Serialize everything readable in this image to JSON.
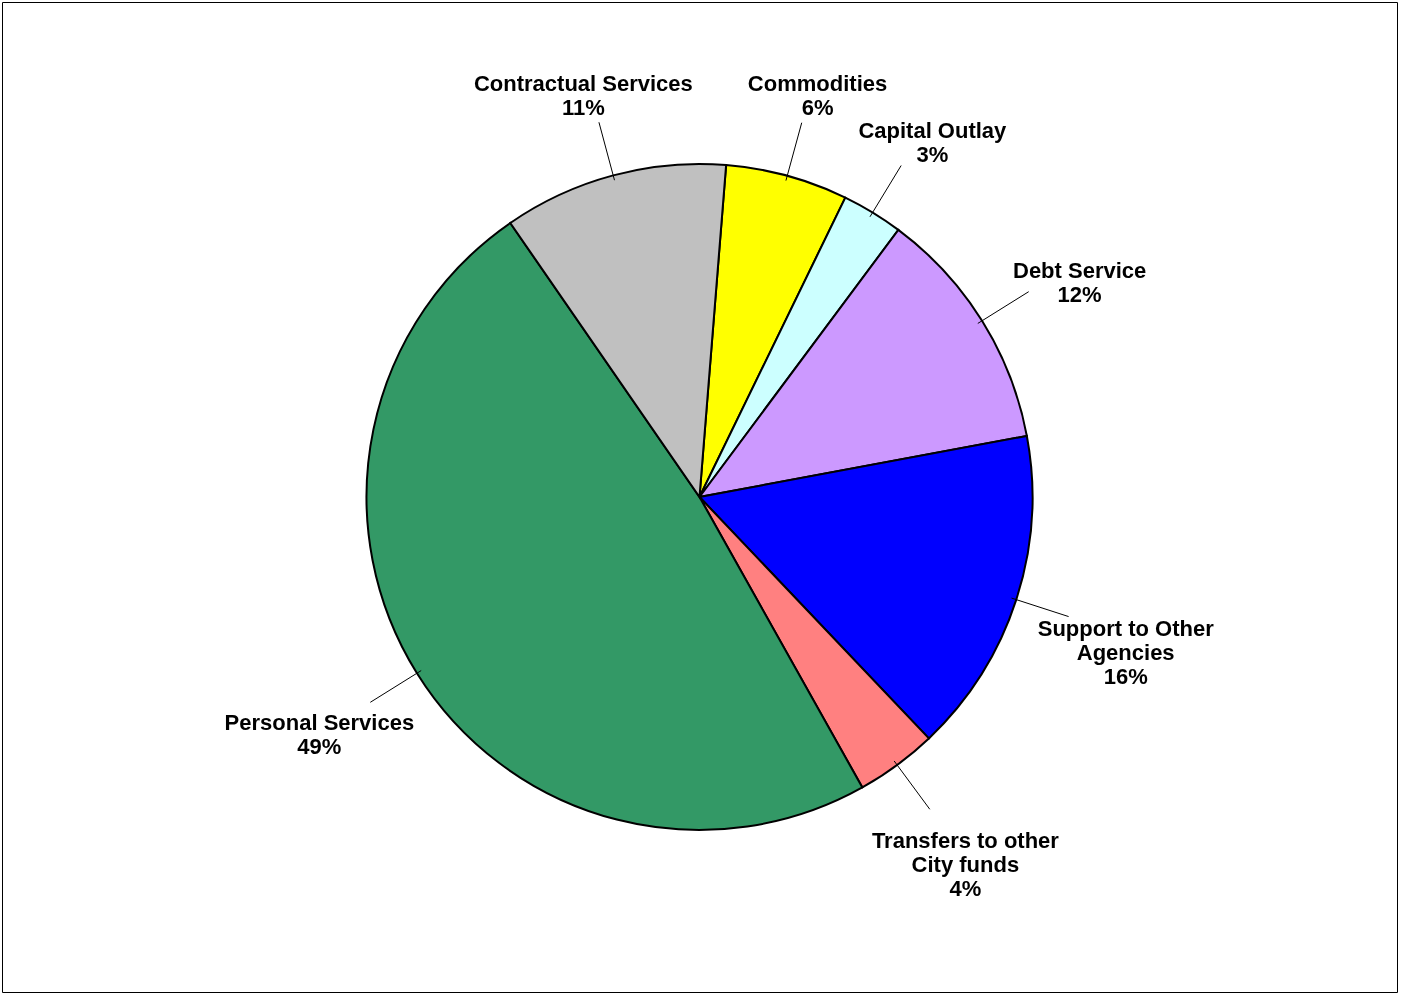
{
  "chart_data": {
    "type": "pie",
    "categories": [
      "Commodities",
      "Capital Outlay",
      "Debt Service",
      "Support to Other Agencies",
      "Transfers to other City funds",
      "Personal Services",
      "Contractual Services"
    ],
    "values": [
      6,
      3,
      12,
      16,
      4,
      49,
      11
    ],
    "colors": [
      "#ffff00",
      "#ccffff",
      "#cc99ff",
      "#0000ff",
      "#ff8080",
      "#339966",
      "#c0c0c0"
    ],
    "value_labels": [
      "6%",
      "3%",
      "12%",
      "16%",
      "4%",
      "49%",
      "11%"
    ],
    "legend": false
  }
}
